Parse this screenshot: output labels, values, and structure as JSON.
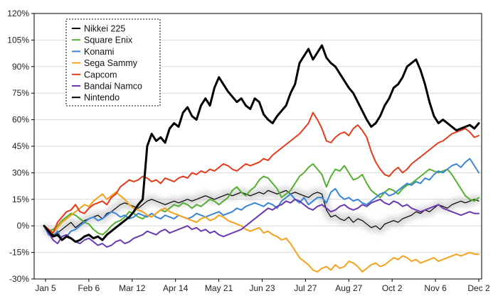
{
  "chart_data": {
    "type": "line",
    "title": "",
    "xlabel": "",
    "ylabel": "",
    "x_ticks": [
      "Jan 5",
      "Feb 6",
      "Mar 12",
      "Apr 14",
      "May 21",
      "Jun 23",
      "Jul 27",
      "Aug 27",
      "Oct 2",
      "Nov 6",
      "Dec 2"
    ],
    "y_ticks": [
      "-30%",
      "-15%",
      "0%",
      "15%",
      "30%",
      "45%",
      "60%",
      "75%",
      "90%",
      "105%",
      "120%"
    ],
    "ylim": [
      -30,
      120
    ],
    "grid": "horizontal",
    "legend_position": "top-left",
    "series": [
      {
        "name": "Nikkei 225",
        "color": "#000000",
        "width": 1.2,
        "halo": true,
        "values": [
          0,
          -3,
          -5,
          -4,
          -2,
          0,
          2,
          -1,
          1,
          3,
          4,
          5,
          6,
          4,
          7,
          8,
          10,
          12,
          13,
          12,
          11,
          10,
          12,
          14,
          15,
          14,
          13,
          12,
          13,
          14,
          13,
          14,
          15,
          14,
          15,
          16,
          17,
          16,
          15,
          16,
          17,
          18,
          17,
          18,
          19,
          18,
          17,
          18,
          19,
          18,
          20,
          19,
          18,
          19,
          20,
          18,
          19,
          18,
          17,
          16,
          18,
          19,
          18,
          9,
          5,
          6,
          4,
          3,
          5,
          2,
          4,
          3,
          1,
          -1,
          0,
          -2,
          1,
          2,
          3,
          2,
          4,
          5,
          6,
          8,
          7,
          9,
          8,
          10,
          12,
          11,
          10,
          12,
          13,
          14,
          13,
          14,
          15,
          14
        ]
      },
      {
        "name": "Square Enix",
        "color": "#55b031",
        "width": 2,
        "values": [
          0,
          -3,
          -2,
          0,
          3,
          5,
          7,
          6,
          4,
          2,
          1,
          -2,
          -4,
          -5,
          -3,
          0,
          2,
          3,
          5,
          8,
          7,
          5,
          4,
          6,
          5,
          7,
          9,
          8,
          10,
          12,
          11,
          13,
          12,
          10,
          12,
          11,
          13,
          15,
          14,
          12,
          14,
          16,
          20,
          22,
          19,
          17,
          20,
          22,
          26,
          28,
          27,
          24,
          21,
          16,
          18,
          20,
          24,
          28,
          30,
          33,
          35,
          32,
          29,
          22,
          28,
          32,
          31,
          34,
          30,
          26,
          27,
          29,
          24,
          20,
          18,
          16,
          19,
          21,
          20,
          18,
          21,
          23,
          24,
          26,
          28,
          30,
          32,
          31,
          30,
          31,
          32,
          29,
          25,
          21,
          17,
          15,
          14,
          16
        ]
      },
      {
        "name": "Konami",
        "color": "#3a86d6",
        "width": 2,
        "values": [
          0,
          -5,
          -6,
          -3,
          -8,
          -6,
          -3,
          -2,
          0,
          2,
          4,
          5,
          3,
          4,
          6,
          8,
          7,
          5,
          6,
          4,
          5,
          7,
          6,
          5,
          7,
          5,
          4,
          6,
          5,
          4,
          6,
          5,
          4,
          5,
          7,
          6,
          5,
          6,
          7,
          8,
          6,
          7,
          8,
          10,
          9,
          11,
          12,
          13,
          12,
          11,
          13,
          12,
          10,
          14,
          16,
          18,
          15,
          13,
          16,
          12,
          14,
          16,
          16,
          13,
          19,
          21,
          17,
          15,
          16,
          14,
          15,
          13,
          12,
          14,
          16,
          18,
          19,
          17,
          18,
          20,
          22,
          24,
          23,
          25,
          24,
          27,
          26,
          29,
          31,
          30,
          32,
          34,
          35,
          33,
          36,
          38,
          34,
          30
        ]
      },
      {
        "name": "Sega Sammy",
        "color": "#f7a21b",
        "width": 2,
        "values": [
          0,
          -2,
          -4,
          -1,
          2,
          4,
          6,
          8,
          10,
          12,
          11,
          14,
          16,
          18,
          15,
          17,
          19,
          17,
          15,
          12,
          10,
          9,
          8,
          6,
          5,
          7,
          9,
          10,
          8,
          7,
          6,
          5,
          4,
          3,
          2,
          4,
          5,
          3,
          4,
          6,
          5,
          3,
          2,
          1,
          0,
          -2,
          -3,
          -2,
          -1,
          -4,
          -3,
          -5,
          -6,
          -8,
          -7,
          -10,
          -14,
          -18,
          -20,
          -22,
          -25,
          -26,
          -24,
          -23,
          -25,
          -22,
          -24,
          -23,
          -20,
          -21,
          -23,
          -26,
          -24,
          -22,
          -21,
          -23,
          -22,
          -20,
          -18,
          -19,
          -17,
          -18,
          -20,
          -19,
          -21,
          -20,
          -19,
          -18,
          -20,
          -19,
          -18,
          -17,
          -16,
          -17,
          -16,
          -15,
          -16,
          -16
        ]
      },
      {
        "name": "Capcom",
        "color": "#e83a1a",
        "width": 2,
        "values": [
          0,
          -2,
          -4,
          2,
          5,
          8,
          9,
          12,
          8,
          7,
          10,
          12,
          13,
          14,
          12,
          16,
          18,
          22,
          24,
          26,
          25,
          26,
          28,
          27,
          25,
          26,
          24,
          27,
          26,
          25,
          27,
          28,
          27,
          30,
          29,
          31,
          30,
          32,
          31,
          33,
          35,
          34,
          32,
          31,
          33,
          35,
          34,
          35,
          36,
          38,
          37,
          40,
          42,
          44,
          46,
          48,
          50,
          52,
          55,
          58,
          64,
          60,
          55,
          48,
          47,
          50,
          52,
          53,
          51,
          55,
          57,
          54,
          50,
          42,
          36,
          32,
          29,
          28,
          31,
          33,
          30,
          32,
          35,
          37,
          39,
          41,
          43,
          45,
          47,
          48,
          50,
          52,
          53,
          54,
          55,
          53,
          50,
          51
        ]
      },
      {
        "name": "Bandai Namco",
        "color": "#6a3ab2",
        "width": 2,
        "values": [
          0,
          -4,
          -8,
          -10,
          -6,
          -5,
          -7,
          -9,
          -10,
          -8,
          -7,
          -9,
          -11,
          -10,
          -12,
          -11,
          -9,
          -8,
          -10,
          -9,
          -7,
          -6,
          -5,
          -3,
          -4,
          -5,
          -3,
          -2,
          -4,
          -3,
          -2,
          -1,
          0,
          -2,
          -1,
          -3,
          -2,
          -4,
          -3,
          -5,
          -6,
          -5,
          -4,
          -3,
          -2,
          0,
          2,
          4,
          6,
          8,
          10,
          9,
          11,
          12,
          14,
          13,
          15,
          14,
          12,
          10,
          9,
          11,
          12,
          10,
          8,
          9,
          11,
          12,
          10,
          9,
          10,
          12,
          11,
          13,
          14,
          15,
          13,
          12,
          14,
          13,
          11,
          12,
          10,
          9,
          8,
          9,
          10,
          11,
          12,
          10,
          9,
          8,
          7,
          6,
          7,
          8,
          7,
          7
        ]
      },
      {
        "name": "Nintendo",
        "color": "#000000",
        "width": 3,
        "values": [
          0,
          -3,
          -6,
          -5,
          -8,
          -6,
          -7,
          -9,
          -8,
          -6,
          -5,
          -7,
          -6,
          -8,
          -5,
          -3,
          -1,
          1,
          3,
          5,
          8,
          12,
          15,
          45,
          52,
          48,
          50,
          47,
          55,
          58,
          56,
          64,
          67,
          62,
          60,
          68,
          72,
          68,
          78,
          84,
          80,
          76,
          73,
          70,
          72,
          68,
          66,
          72,
          70,
          63,
          60,
          58,
          62,
          65,
          68,
          75,
          80,
          92,
          96,
          100,
          94,
          98,
          102,
          95,
          92,
          90,
          86,
          82,
          78,
          75,
          70,
          65,
          60,
          56,
          58,
          62,
          68,
          72,
          78,
          80,
          84,
          90,
          92,
          94,
          88,
          80,
          70,
          62,
          58,
          60,
          58,
          56,
          54,
          55,
          56,
          57,
          55,
          58
        ]
      }
    ]
  }
}
